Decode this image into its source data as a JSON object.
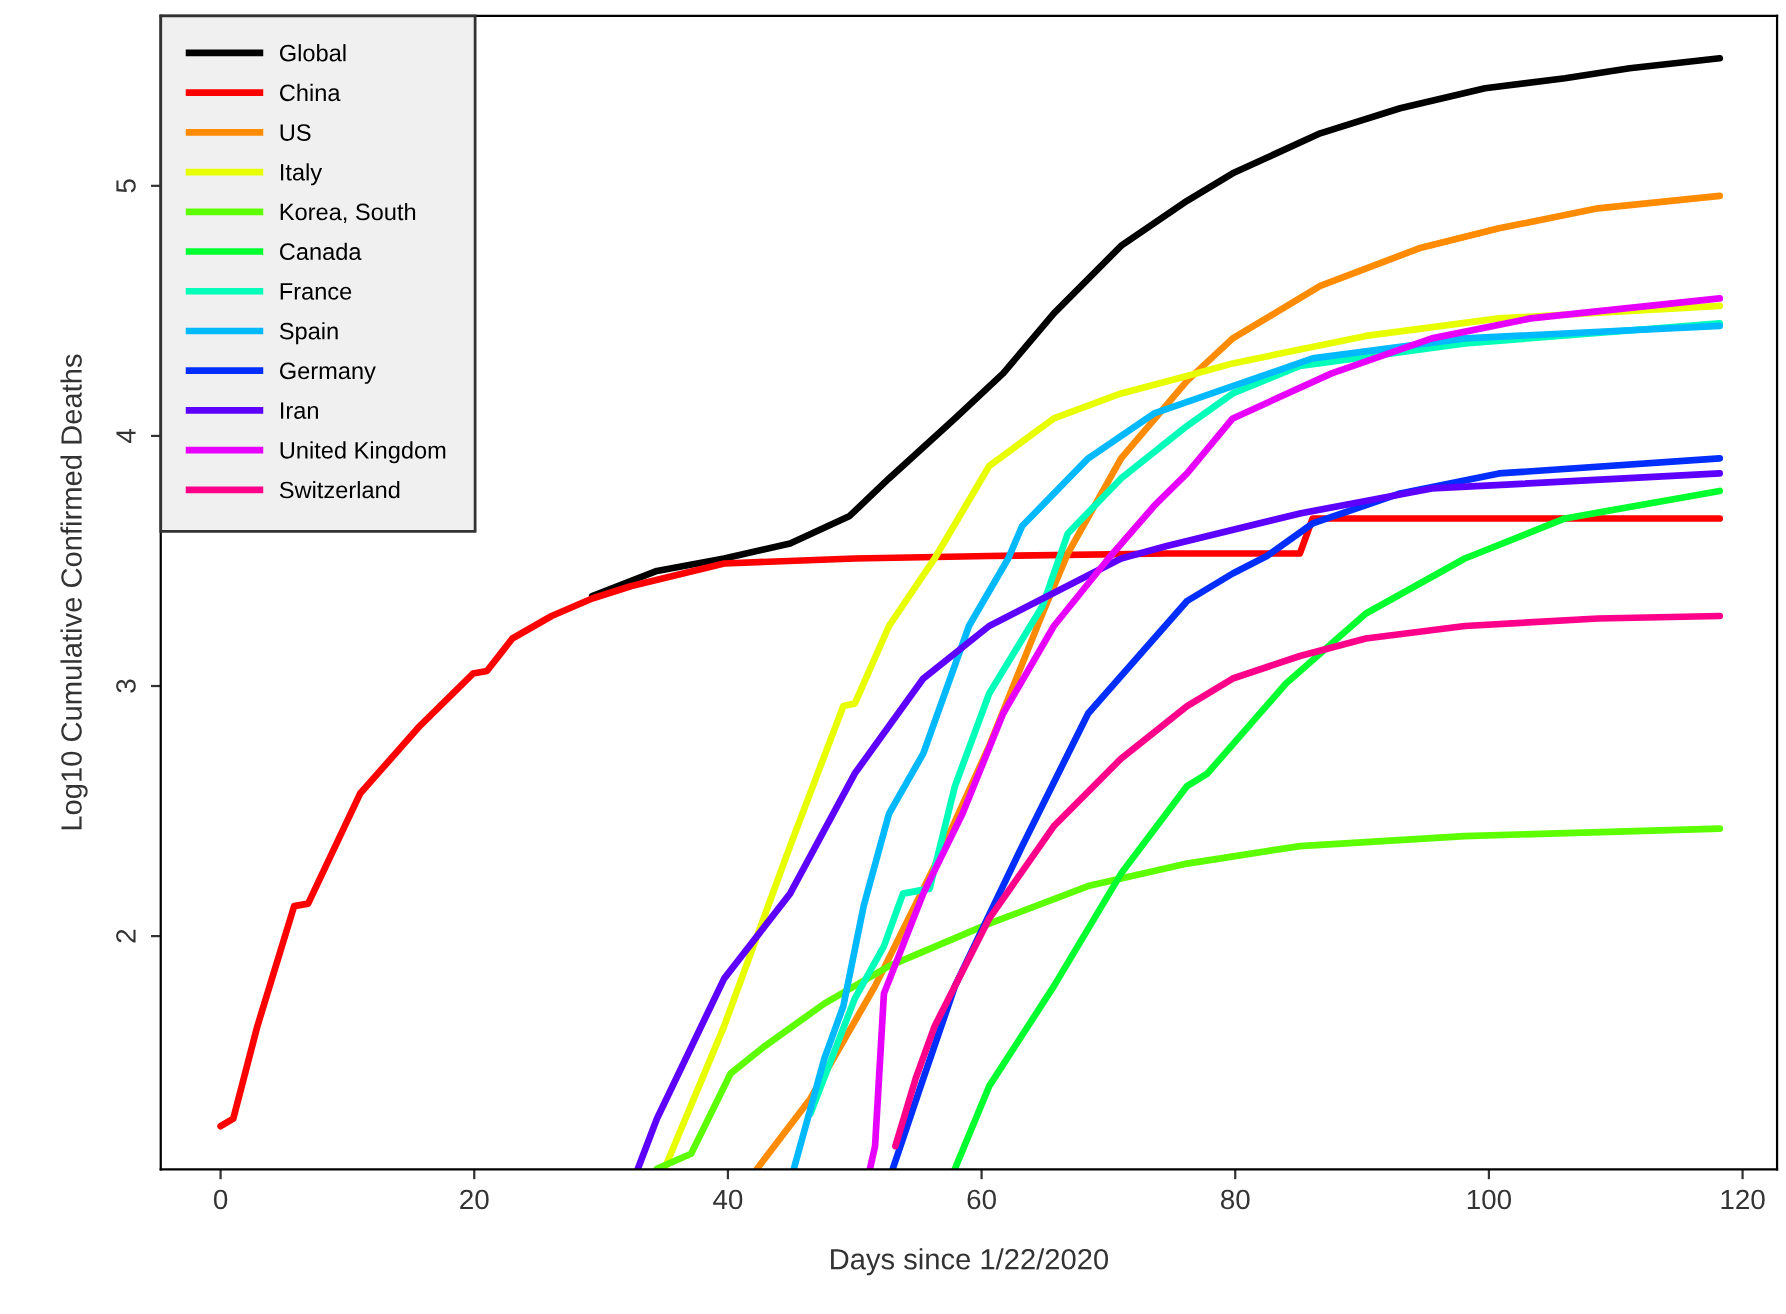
{
  "chart_data": {
    "type": "line",
    "xlabel": "Days since 1/22/2020",
    "ylabel": "Log10 Cumulative Confirmed Deaths",
    "xlim": [
      -4.72,
      122.72
    ],
    "ylim": [
      1.067,
      5.68
    ],
    "xticks": [
      0,
      20,
      40,
      60,
      80,
      100,
      120
    ],
    "yticks": [
      2,
      3,
      4,
      5
    ],
    "grid": false,
    "legend": "top left",
    "line_style": "solid",
    "marker": "none",
    "series": [
      {
        "name": "Global",
        "color": "#000000",
        "x": [
          29.3,
          34.4,
          39.7,
          44.9,
          49.6,
          52.7,
          57.9,
          61.7,
          65.7,
          71,
          76.2,
          79.8,
          86.7,
          93,
          99.7,
          106,
          111.1,
          118.2
        ],
        "values": [
          3.36,
          3.46,
          3.51,
          3.57,
          3.68,
          3.83,
          4.07,
          4.25,
          4.49,
          4.76,
          4.94,
          5.05,
          5.21,
          5.31,
          5.39,
          5.43,
          5.47,
          5.51
        ]
      },
      {
        "name": "China",
        "color": "#ff0000",
        "x": [
          0,
          1,
          2.9,
          5.8,
          6.9,
          11,
          15.7,
          19.9,
          21,
          23,
          26.1,
          29.3,
          32.4,
          39.7,
          50,
          60.6,
          74.6,
          85.1,
          86.1,
          118.2
        ],
        "values": [
          1.24,
          1.27,
          1.64,
          2.12,
          2.13,
          2.57,
          2.84,
          3.05,
          3.06,
          3.19,
          3.28,
          3.35,
          3.4,
          3.49,
          3.51,
          3.52,
          3.53,
          3.53,
          3.67,
          3.67
        ]
      },
      {
        "name": "US",
        "color": "#ff8b00",
        "x": [
          42.3,
          46.5,
          51.6,
          56.3,
          60.6,
          64.8,
          66.8,
          71,
          76.2,
          79.8,
          86.7,
          94.5,
          100.8,
          108.6,
          118.2
        ],
        "values": [
          1.07,
          1.35,
          1.8,
          2.28,
          2.76,
          3.29,
          3.53,
          3.91,
          4.22,
          4.39,
          4.6,
          4.75,
          4.83,
          4.91,
          4.96
        ]
      },
      {
        "name": "Italy",
        "color": "#e8ff00",
        "x": [
          35,
          39.7,
          44.9,
          49.1,
          50,
          52.7,
          56.3,
          60.6,
          65.7,
          71,
          76.2,
          79.8,
          90.3,
          100.8,
          118.2
        ],
        "values": [
          1.07,
          1.64,
          2.36,
          2.92,
          2.93,
          3.24,
          3.51,
          3.88,
          4.07,
          4.17,
          4.24,
          4.29,
          4.4,
          4.47,
          4.52
        ]
      },
      {
        "name": "Korea, South",
        "color": "#5dff00",
        "x": [
          34.4,
          37.1,
          40.2,
          42.9,
          47.6,
          52.7,
          60.6,
          68.4,
          76.2,
          85.1,
          98.1,
          118.2
        ],
        "values": [
          1.07,
          1.13,
          1.45,
          1.56,
          1.73,
          1.88,
          2.05,
          2.2,
          2.29,
          2.36,
          2.4,
          2.43
        ]
      },
      {
        "name": "Canada",
        "color": "#00ff2e",
        "x": [
          57.9,
          60.6,
          65.7,
          71,
          76.2,
          77.8,
          84,
          90.3,
          98.1,
          106,
          118.2
        ],
        "values": [
          1.07,
          1.4,
          1.8,
          2.25,
          2.6,
          2.65,
          3.01,
          3.29,
          3.51,
          3.67,
          3.78
        ]
      },
      {
        "name": "France",
        "color": "#00ffb9",
        "x": [
          46.5,
          50,
          52.3,
          53.8,
          55.9,
          57.9,
          60.6,
          64.8,
          66.8,
          71,
          76.2,
          79.8,
          85.1,
          98.1,
          118.2
        ],
        "values": [
          1.29,
          1.75,
          1.96,
          2.17,
          2.19,
          2.6,
          2.97,
          3.32,
          3.61,
          3.83,
          4.04,
          4.17,
          4.28,
          4.37,
          4.45
        ]
      },
      {
        "name": "Spain",
        "color": "#00b9ff",
        "x": [
          45.2,
          47.6,
          49.1,
          50.7,
          52.7,
          55.4,
          59,
          62.1,
          63.2,
          68.4,
          73.6,
          86.1,
          98.1,
          118.2
        ],
        "values": [
          1.07,
          1.51,
          1.72,
          2.12,
          2.49,
          2.73,
          3.24,
          3.51,
          3.64,
          3.91,
          4.09,
          4.31,
          4.39,
          4.44
        ]
      },
      {
        "name": "Germany",
        "color": "#002eff",
        "x": [
          53,
          55.4,
          57.9,
          63.2,
          68.4,
          76.2,
          79.8,
          82.5,
          86.1,
          93,
          100.8,
          118.2
        ],
        "values": [
          1.07,
          1.43,
          1.8,
          2.36,
          2.89,
          3.34,
          3.45,
          3.52,
          3.65,
          3.77,
          3.85,
          3.91
        ]
      },
      {
        "name": "Iran",
        "color": "#5d00ff",
        "x": [
          32.9,
          34.4,
          39.7,
          44.9,
          50,
          55.4,
          60.6,
          71,
          74.6,
          85.1,
          95.5,
          118.2
        ],
        "values": [
          1.07,
          1.27,
          1.83,
          2.17,
          2.65,
          3.03,
          3.24,
          3.51,
          3.56,
          3.69,
          3.79,
          3.85
        ]
      },
      {
        "name": "United Kingdom",
        "color": "#e800ff",
        "x": [
          51.2,
          51.6,
          52.3,
          55.4,
          58.5,
          61.7,
          65.7,
          70,
          73.6,
          76.2,
          79.8,
          87.6,
          95.5,
          103.3,
          118.2
        ],
        "values": [
          1.07,
          1.16,
          1.77,
          2.17,
          2.49,
          2.89,
          3.24,
          3.51,
          3.72,
          3.85,
          4.07,
          4.25,
          4.39,
          4.47,
          4.55
        ]
      },
      {
        "name": "Switzerland",
        "color": "#ff008b",
        "x": [
          53.2,
          54.8,
          56.3,
          60.6,
          65.7,
          71,
          76.2,
          79.8,
          85.1,
          90.3,
          98.1,
          108.6,
          118.2
        ],
        "values": [
          1.16,
          1.43,
          1.64,
          2.07,
          2.44,
          2.71,
          2.92,
          3.03,
          3.12,
          3.19,
          3.24,
          3.27,
          3.28
        ]
      }
    ]
  }
}
